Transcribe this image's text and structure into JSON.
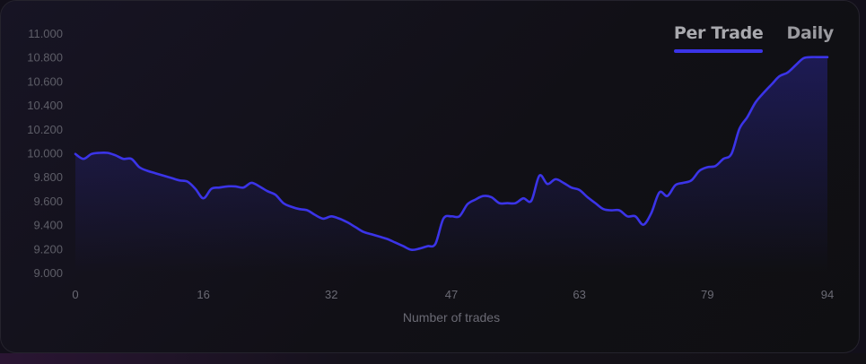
{
  "tabs": [
    {
      "label": "Per Trade",
      "active": true
    },
    {
      "label": "Daily",
      "active": false
    }
  ],
  "colors": {
    "line": "#3b34e8",
    "accent": "#3b34e8"
  },
  "chart_data": {
    "type": "area",
    "title": "",
    "xlabel": "Number of trades",
    "ylabel": "",
    "xlim": [
      0,
      94
    ],
    "ylim": [
      9.0,
      11.0
    ],
    "x_ticks": [
      "0",
      "16",
      "32",
      "47",
      "63",
      "79",
      "94"
    ],
    "y_ticks": [
      "9.000",
      "9.200",
      "9.400",
      "9.600",
      "9.800",
      "10.000",
      "10.200",
      "10.400",
      "10.600",
      "10.800",
      "11.000"
    ],
    "grid": false,
    "series": [
      {
        "name": "",
        "x": [
          0,
          1,
          2,
          3,
          4,
          5,
          6,
          7,
          8,
          9,
          10,
          11,
          12,
          13,
          14,
          15,
          16,
          17,
          18,
          19,
          20,
          21,
          22,
          23,
          24,
          25,
          26,
          27,
          28,
          29,
          30,
          31,
          32,
          33,
          34,
          35,
          36,
          37,
          38,
          39,
          40,
          41,
          42,
          43,
          44,
          45,
          46,
          47,
          48,
          49,
          50,
          51,
          52,
          53,
          54,
          55,
          56,
          57,
          58,
          59,
          60,
          61,
          62,
          63,
          64,
          65,
          66,
          67,
          68,
          69,
          70,
          71,
          72,
          73,
          74,
          75,
          76,
          77,
          78,
          79,
          80,
          81,
          82,
          83,
          84,
          85,
          86,
          87,
          88,
          89,
          90,
          91,
          92,
          93,
          94
        ],
        "y": [
          9.99,
          9.95,
          9.99,
          10.0,
          10.0,
          9.98,
          9.95,
          9.95,
          9.88,
          9.85,
          9.83,
          9.81,
          9.79,
          9.77,
          9.76,
          9.7,
          9.62,
          9.7,
          9.71,
          9.72,
          9.72,
          9.71,
          9.75,
          9.72,
          9.68,
          9.65,
          9.58,
          9.55,
          9.53,
          9.52,
          9.48,
          9.45,
          9.47,
          9.45,
          9.42,
          9.38,
          9.34,
          9.32,
          9.3,
          9.28,
          9.25,
          9.22,
          9.19,
          9.2,
          9.22,
          9.24,
          9.45,
          9.47,
          9.47,
          9.57,
          9.61,
          9.64,
          9.63,
          9.58,
          9.58,
          9.58,
          9.62,
          9.6,
          9.81,
          9.74,
          9.78,
          9.75,
          9.71,
          9.69,
          9.63,
          9.58,
          9.53,
          9.52,
          9.52,
          9.47,
          9.47,
          9.4,
          9.5,
          9.67,
          9.64,
          9.73,
          9.75,
          9.77,
          9.85,
          9.88,
          9.89,
          9.95,
          9.99,
          10.2,
          10.3,
          10.42,
          10.5,
          10.57,
          10.64,
          10.67,
          10.73,
          10.79,
          10.8,
          10.8,
          10.8
        ]
      }
    ]
  }
}
